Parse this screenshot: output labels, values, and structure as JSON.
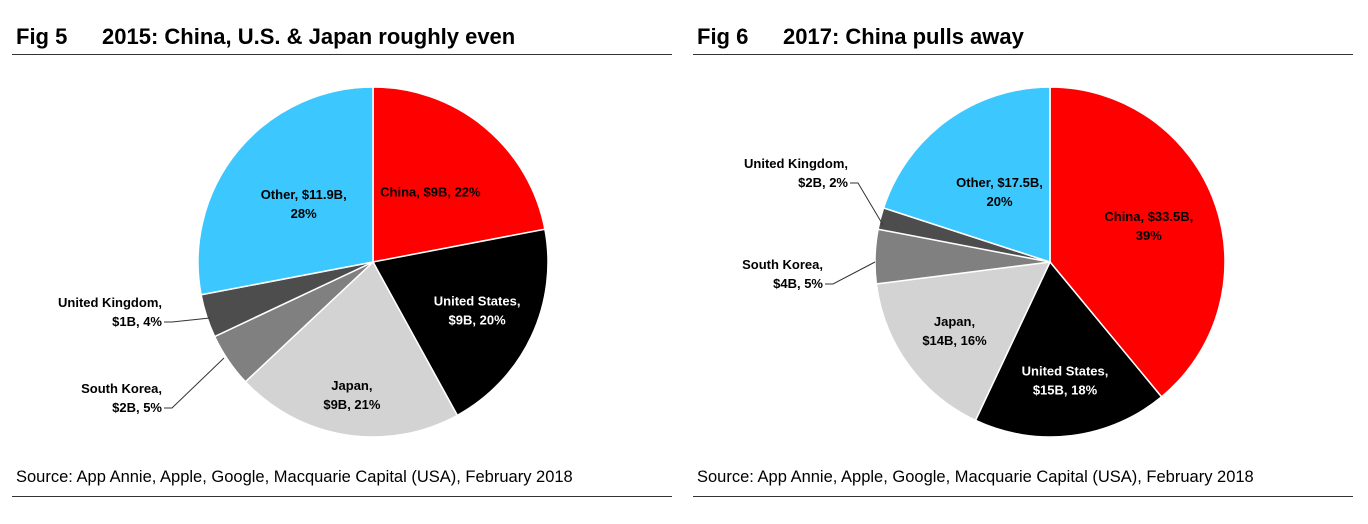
{
  "colors": {
    "china": "#ff0000",
    "united_states": "#000000",
    "japan": "#d3d3d3",
    "south_korea": "#808080",
    "united_kingdom": "#4d4d4d",
    "other": "#3cc8ff"
  },
  "chart_data": [
    {
      "type": "pie",
      "fig_label": "Fig 5",
      "title": "2015: China, U.S. & Japan roughly even",
      "source": "Source: App Annie, Apple, Google, Macquarie Capital (USA), February 2018",
      "slices": [
        {
          "name": "China",
          "value_label": "$9B",
          "percent": 22,
          "color_key": "china",
          "label_lines": [
            "China, $9B, 22%"
          ],
          "label_color": "#000000"
        },
        {
          "name": "United States",
          "value_label": "$9B",
          "percent": 20,
          "color_key": "united_states",
          "label_lines": [
            "United States,",
            "$9B, 20%"
          ],
          "label_color": "#ffffff"
        },
        {
          "name": "Japan",
          "value_label": "$9B",
          "percent": 21,
          "color_key": "japan",
          "label_lines": [
            "Japan,",
            "$9B, 21%"
          ],
          "label_color": "#000000"
        },
        {
          "name": "South Korea",
          "value_label": "$2B",
          "percent": 5,
          "color_key": "south_korea",
          "label_lines": [
            "South Korea,",
            "$2B, 5%"
          ],
          "label_color": "#000000"
        },
        {
          "name": "United Kingdom",
          "value_label": "$1B",
          "percent": 4,
          "color_key": "united_kingdom",
          "label_lines": [
            "United Kingdom,",
            "$1B, 4%"
          ],
          "label_color": "#000000"
        },
        {
          "name": "Other",
          "value_label": "$11.9B",
          "percent": 28,
          "color_key": "other",
          "label_lines": [
            "Other, $11.9B,",
            "28%"
          ],
          "label_color": "#000000"
        }
      ]
    },
    {
      "type": "pie",
      "fig_label": "Fig 6",
      "title": "2017: China pulls away",
      "source": "Source: App Annie, Apple, Google, Macquarie Capital (USA), February 2018",
      "slices": [
        {
          "name": "China",
          "value_label": "$33.5B",
          "percent": 39,
          "color_key": "china",
          "label_lines": [
            "China, $33.5B,",
            "39%"
          ],
          "label_color": "#000000"
        },
        {
          "name": "United States",
          "value_label": "$15B",
          "percent": 18,
          "color_key": "united_states",
          "label_lines": [
            "United States,",
            "$15B, 18%"
          ],
          "label_color": "#ffffff"
        },
        {
          "name": "Japan",
          "value_label": "$14B",
          "percent": 16,
          "color_key": "japan",
          "label_lines": [
            "Japan,",
            "$14B, 16%"
          ],
          "label_color": "#000000"
        },
        {
          "name": "South Korea",
          "value_label": "$4B",
          "percent": 5,
          "color_key": "south_korea",
          "label_lines": [
            "South Korea,",
            "$4B, 5%"
          ],
          "label_color": "#000000"
        },
        {
          "name": "United Kingdom",
          "value_label": "$2B",
          "percent": 2,
          "color_key": "united_kingdom",
          "label_lines": [
            "United Kingdom,",
            "$2B, 2%"
          ],
          "label_color": "#000000"
        },
        {
          "name": "Other",
          "value_label": "$17.5B",
          "percent": 20,
          "color_key": "other",
          "label_lines": [
            "Other, $17.5B,",
            "20%"
          ],
          "label_color": "#000000"
        }
      ]
    }
  ]
}
